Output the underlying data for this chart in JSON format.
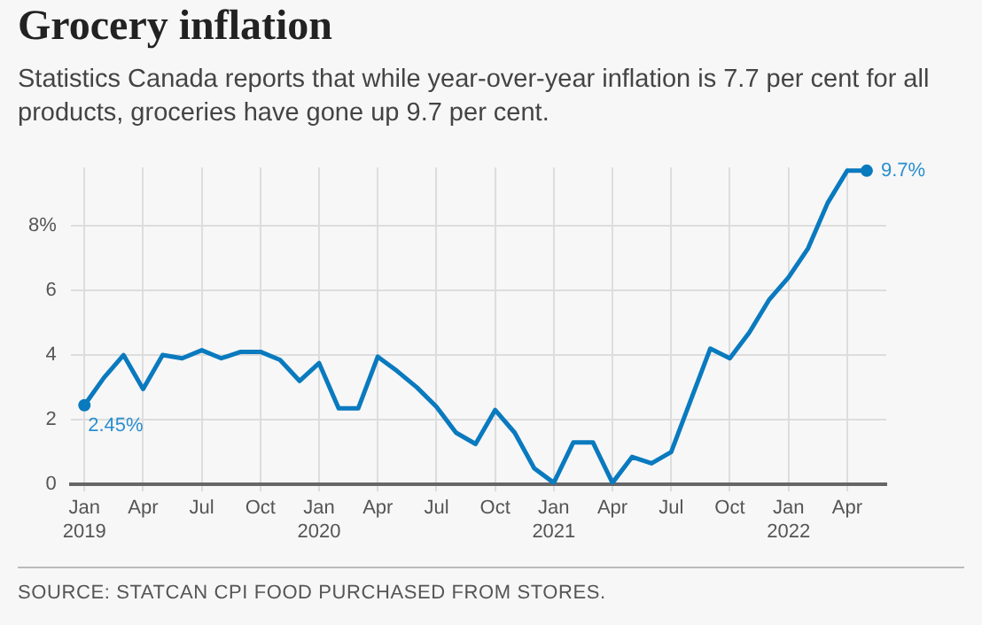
{
  "chart_data": {
    "type": "line",
    "title": "Grocery inflation",
    "subtitle": "Statistics Canada reports that while year-over-year inflation is 7.7 per cent for all products, groceries have gone up 9.7 per cent.",
    "x": [
      "2019-01",
      "2019-02",
      "2019-03",
      "2019-04",
      "2019-05",
      "2019-06",
      "2019-07",
      "2019-08",
      "2019-09",
      "2019-10",
      "2019-11",
      "2019-12",
      "2020-01",
      "2020-02",
      "2020-03",
      "2020-04",
      "2020-05",
      "2020-06",
      "2020-07",
      "2020-08",
      "2020-09",
      "2020-10",
      "2020-11",
      "2020-12",
      "2021-01",
      "2021-02",
      "2021-03",
      "2021-04",
      "2021-05",
      "2021-06",
      "2021-07",
      "2021-08",
      "2021-09",
      "2021-10",
      "2021-11",
      "2021-12",
      "2022-01",
      "2022-02",
      "2022-03",
      "2022-04",
      "2022-05"
    ],
    "series": [
      {
        "color": "#0a7abf",
        "values": [
          2.45,
          3.3,
          4.0,
          2.95,
          4.0,
          3.9,
          4.15,
          3.9,
          4.1,
          4.1,
          3.85,
          3.2,
          3.75,
          2.35,
          2.35,
          3.95,
          3.5,
          3.0,
          2.4,
          1.6,
          1.25,
          2.3,
          1.6,
          0.5,
          0.05,
          1.3,
          1.3,
          0.05,
          0.85,
          0.65,
          1.0,
          2.6,
          4.2,
          3.9,
          4.7,
          5.7,
          6.4,
          7.3,
          8.7,
          9.7,
          9.7
        ]
      }
    ],
    "xlim": [
      "2018-12-10",
      "2022-06"
    ],
    "xticks": [
      {
        "value": "2019-01",
        "label": "Jan\n2019"
      },
      {
        "value": "2019-04",
        "label": "Apr"
      },
      {
        "value": "2019-07",
        "label": "Jul"
      },
      {
        "value": "2019-10",
        "label": "Oct"
      },
      {
        "value": "2020-01",
        "label": "Jan\n2020"
      },
      {
        "value": "2020-04",
        "label": "Apr"
      },
      {
        "value": "2020-07",
        "label": "Jul"
      },
      {
        "value": "2020-10",
        "label": "Oct"
      },
      {
        "value": "2021-01",
        "label": "Jan\n2021"
      },
      {
        "value": "2021-04",
        "label": "Apr"
      },
      {
        "value": "2021-07",
        "label": "Jul"
      },
      {
        "value": "2021-10",
        "label": "Oct"
      },
      {
        "value": "2022-01",
        "label": "Jan\n2022"
      },
      {
        "value": "2022-04",
        "label": "Apr"
      }
    ],
    "ylim": [
      0,
      9.8
    ],
    "yticks": [
      0,
      2,
      4,
      6,
      {
        "value": 8,
        "label": "8%"
      }
    ],
    "grid": true,
    "annotations": [
      {
        "text": "2.45%",
        "x": "2019-01",
        "y": 2.45
      },
      {
        "text": "9.7%",
        "x": "2022-05",
        "y": 9.7
      },
      "SOURCE: STATCAN CPI FOOD PURCHASED FROM STORES."
    ]
  }
}
